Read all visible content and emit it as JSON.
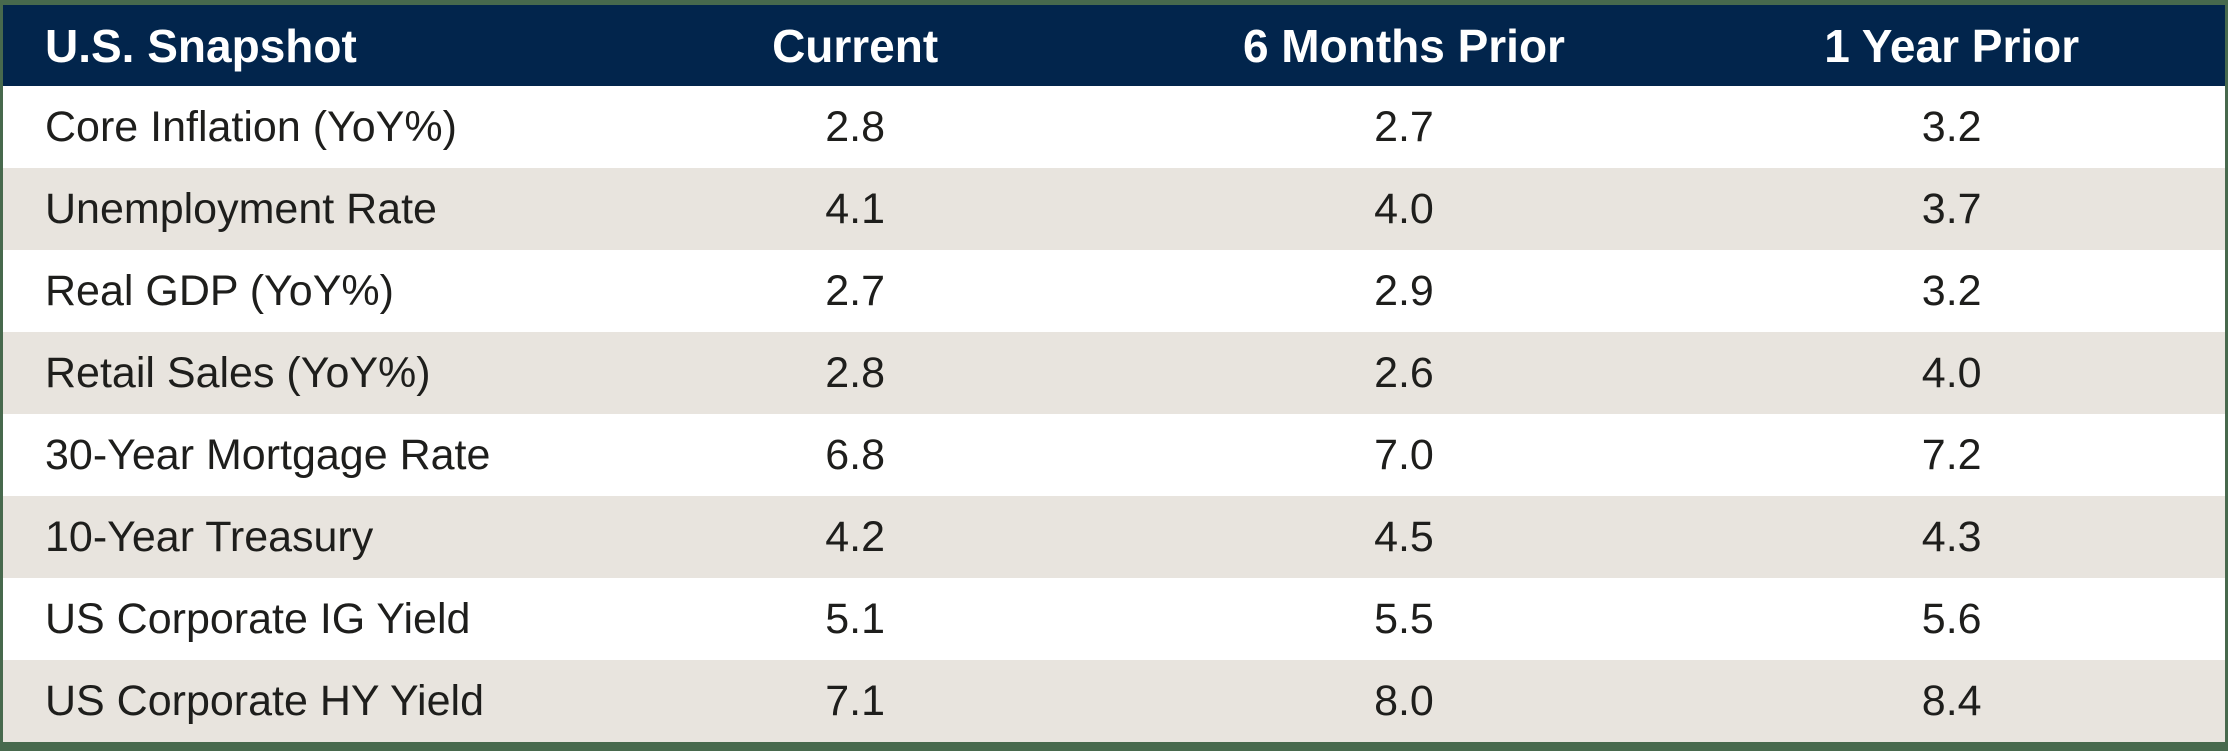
{
  "table": {
    "header": {
      "title": "U.S. Snapshot",
      "columns": [
        "Current",
        "6 Months Prior",
        "1 Year Prior"
      ]
    },
    "rows": [
      {
        "label": "Core Inflation (YoY%)",
        "current": "2.8",
        "six_months_prior": "2.7",
        "one_year_prior": "3.2"
      },
      {
        "label": "Unemployment Rate",
        "current": "4.1",
        "six_months_prior": "4.0",
        "one_year_prior": "3.7"
      },
      {
        "label": "Real GDP (YoY%)",
        "current": "2.7",
        "six_months_prior": "2.9",
        "one_year_prior": "3.2"
      },
      {
        "label": "Retail Sales (YoY%)",
        "current": "2.8",
        "six_months_prior": "2.6",
        "one_year_prior": "4.0"
      },
      {
        "label": "30-Year Mortgage Rate",
        "current": "6.8",
        "six_months_prior": "7.0",
        "one_year_prior": "7.2"
      },
      {
        "label": "10-Year Treasury",
        "current": "4.2",
        "six_months_prior": "4.5",
        "one_year_prior": "4.3"
      },
      {
        "label": "US Corporate IG Yield",
        "current": "5.1",
        "six_months_prior": "5.5",
        "one_year_prior": "5.6"
      },
      {
        "label": "US Corporate HY Yield",
        "current": "7.1",
        "six_months_prior": "8.0",
        "one_year_prior": "8.4"
      }
    ]
  },
  "chart_data": {
    "type": "table",
    "title": "U.S. Snapshot",
    "columns": [
      "U.S. Snapshot",
      "Current",
      "6 Months Prior",
      "1 Year Prior"
    ],
    "rows": [
      [
        "Core Inflation (YoY%)",
        2.8,
        2.7,
        3.2
      ],
      [
        "Unemployment Rate",
        4.1,
        4.0,
        3.7
      ],
      [
        "Real GDP (YoY%)",
        2.7,
        2.9,
        3.2
      ],
      [
        "Retail Sales (YoY%)",
        2.8,
        2.6,
        4.0
      ],
      [
        "30-Year Mortgage Rate",
        6.8,
        7.0,
        7.2
      ],
      [
        "10-Year Treasury",
        4.2,
        4.5,
        4.3
      ],
      [
        "US Corporate IG Yield",
        5.1,
        5.5,
        5.6
      ],
      [
        "US Corporate HY Yield",
        7.1,
        8.0,
        8.4
      ]
    ]
  },
  "colors": {
    "header_bg": "#02254C",
    "header_text": "#FFFFFF",
    "row_bg": "#FFFFFF",
    "row_alt_bg": "#E8E4DE",
    "border_green": "#47694D",
    "body_text": "#1E1E1C"
  }
}
